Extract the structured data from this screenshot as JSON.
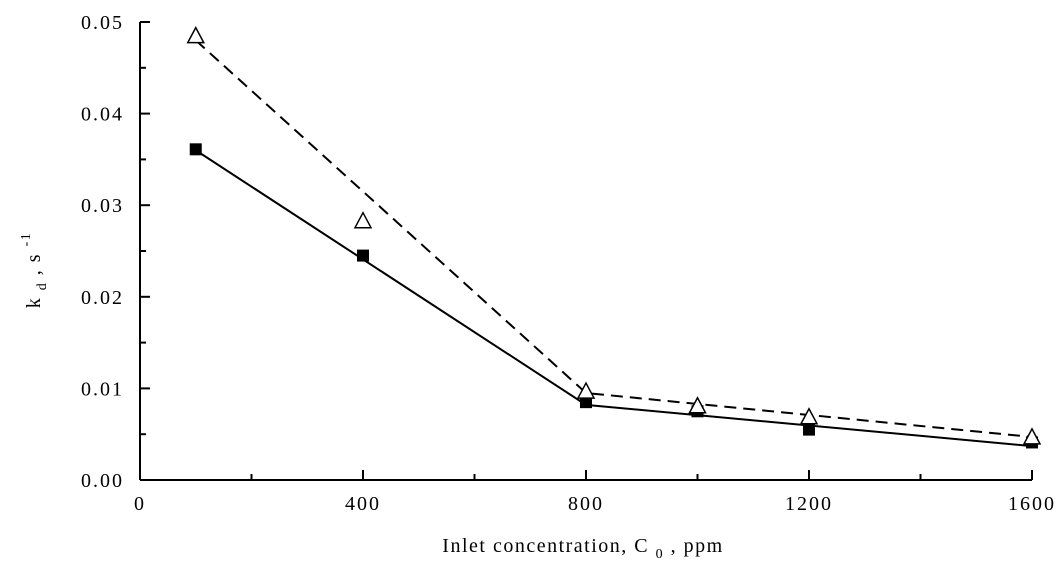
{
  "chart_data": {
    "type": "line",
    "title": "",
    "xlabel": {
      "parts": [
        "Inlet concentration, C",
        "0",
        ", ppm"
      ]
    },
    "ylabel": {
      "parts": [
        "k",
        "d",
        ", s",
        "-1"
      ]
    },
    "xlim": [
      0,
      1600
    ],
    "ylim": [
      0,
      0.05
    ],
    "x_ticks": [
      0,
      400,
      800,
      1200,
      1600
    ],
    "x_tick_labels": [
      "0",
      "400",
      "800",
      "1200",
      "1600"
    ],
    "y_ticks": [
      0.0,
      0.01,
      0.02,
      0.03,
      0.04,
      0.05
    ],
    "y_tick_labels": [
      "0.00",
      "0.01",
      "0.02",
      "0.03",
      "0.04",
      "0.05"
    ],
    "grid": false,
    "series": [
      {
        "marker": "filled-square",
        "color": "#000000",
        "points": [
          {
            "x": 100,
            "y": 0.0361
          },
          {
            "x": 400,
            "y": 0.0245
          },
          {
            "x": 800,
            "y": 0.0085
          },
          {
            "x": 1000,
            "y": 0.0075
          },
          {
            "x": 1200,
            "y": 0.0055
          },
          {
            "x": 1600,
            "y": 0.0041
          }
        ],
        "fit_line": {
          "style": "solid",
          "points": [
            {
              "x": 100,
              "y": 0.036
            },
            {
              "x": 800,
              "y": 0.0082
            },
            {
              "x": 1600,
              "y": 0.0037
            }
          ]
        }
      },
      {
        "marker": "open-triangle",
        "color": "#000000",
        "points": [
          {
            "x": 100,
            "y": 0.0484
          },
          {
            "x": 400,
            "y": 0.0282
          },
          {
            "x": 800,
            "y": 0.0096
          },
          {
            "x": 1000,
            "y": 0.008
          },
          {
            "x": 1200,
            "y": 0.0068
          },
          {
            "x": 1600,
            "y": 0.0046
          }
        ],
        "fit_line": {
          "style": "dashed",
          "points": [
            {
              "x": 100,
              "y": 0.048
            },
            {
              "x": 800,
              "y": 0.0095
            },
            {
              "x": 1600,
              "y": 0.0047
            }
          ]
        }
      }
    ]
  }
}
